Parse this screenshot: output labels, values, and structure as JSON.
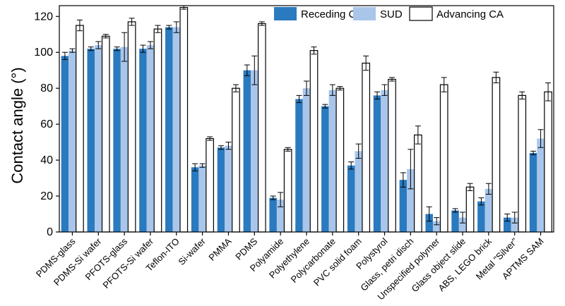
{
  "chart_data": {
    "type": "bar",
    "title": "",
    "xlabel": "",
    "ylabel": "Contact angle (°)",
    "ylim": [
      0,
      126
    ],
    "yticks": [
      0,
      20,
      40,
      60,
      80,
      100,
      120
    ],
    "grid": false,
    "legend_position": "top-right",
    "categories": [
      "PDMS-glass",
      "PDMS-Si wafer",
      "PFOTS-glass",
      "PFOTS-Si wafer",
      "Teflon-ITO",
      "Si-wafer",
      "PMMA",
      "PDMS",
      "Polyamide",
      "Polyethylene",
      "Polycarbonate",
      "PVC solid foam",
      "Polystyrol",
      "Glass, petri disch",
      "Unspecified polymer",
      "Glass object slide",
      "ABS, LEGO brick",
      "Metal \"Silver\"",
      "APTMS SAM"
    ],
    "series": [
      {
        "name": "Receding CA",
        "color": "#2a7abf",
        "values": [
          98,
          102,
          102,
          102,
          114,
          36,
          47,
          90,
          19,
          74,
          70,
          37,
          76,
          29,
          10,
          12,
          17,
          8,
          44
        ],
        "errors": [
          2,
          1,
          1,
          2,
          1,
          2,
          1,
          3,
          1,
          2,
          1,
          2,
          2,
          4,
          4,
          1,
          2,
          2,
          1
        ]
      },
      {
        "name": "SUD",
        "color": "#a9c6ea",
        "values": [
          101,
          104,
          103,
          104,
          114,
          37,
          48,
          90,
          18,
          80,
          79,
          45,
          79,
          35,
          6,
          8,
          24,
          8,
          52
        ],
        "errors": [
          1,
          2,
          8,
          2,
          3,
          1,
          2,
          8,
          4,
          4,
          3,
          4,
          3,
          11,
          2,
          3,
          3,
          3,
          5
        ]
      },
      {
        "name": "Advancing CA",
        "color": "#ffffff",
        "values": [
          115,
          109,
          117,
          113,
          125,
          52,
          80,
          116,
          46,
          101,
          80,
          94,
          85,
          54,
          82,
          25,
          86,
          76,
          78
        ],
        "errors": [
          3,
          1,
          2,
          2,
          1,
          1,
          2,
          1,
          1,
          2,
          1,
          4,
          1,
          5,
          4,
          2,
          3,
          2,
          5
        ]
      }
    ]
  }
}
